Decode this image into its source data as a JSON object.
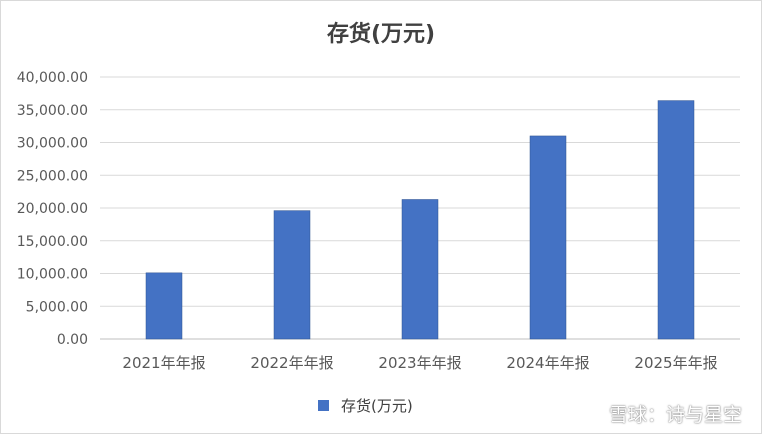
{
  "chart_data": {
    "type": "bar",
    "title": "存货(万元)",
    "categories": [
      "2021年年报",
      "2022年年报",
      "2023年年报",
      "2024年年报",
      "2025年年报"
    ],
    "series": [
      {
        "name": "存货(万元)",
        "values": [
          10100,
          19600,
          21300,
          31000,
          36400
        ]
      }
    ],
    "ylim": [
      0,
      40000
    ],
    "yticks": [
      "0.00",
      "5,000.00",
      "10,000.00",
      "15,000.00",
      "20,000.00",
      "25,000.00",
      "30,000.00",
      "35,000.00",
      "40,000.00"
    ],
    "grid": true,
    "legend": "bottom",
    "color": "#4472c4"
  },
  "watermark": {
    "text": "雪球：诗与星空",
    "icon": "xueqiu-logo-icon"
  }
}
